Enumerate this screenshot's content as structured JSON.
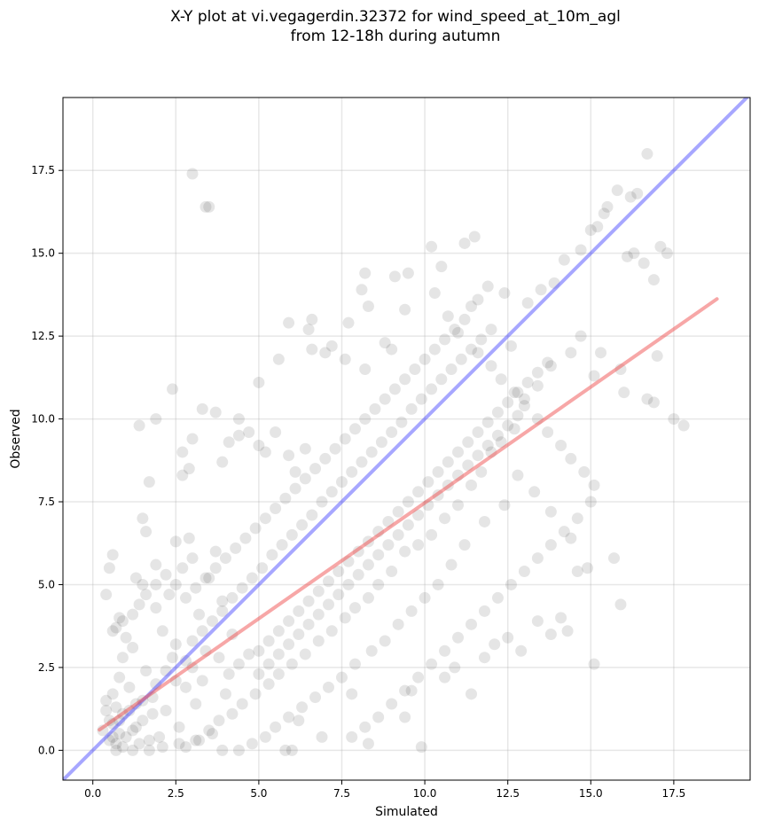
{
  "chart_data": {
    "type": "scatter",
    "title_lines": [
      "X-Y plot at vi.vegagerdin.32372 for wind_speed_at_10m_agl",
      "from 12-18h during autumn"
    ],
    "xlabel": "Simulated",
    "ylabel": "Observed",
    "xlim": [
      -0.9,
      19.8
    ],
    "ylim": [
      -0.9,
      19.7
    ],
    "xticks": [
      0.0,
      2.5,
      5.0,
      7.5,
      10.0,
      12.5,
      15.0,
      17.5
    ],
    "xtick_labels": [
      "0.0",
      "2.5",
      "5.0",
      "7.5",
      "10.0",
      "12.5",
      "15.0",
      "17.5"
    ],
    "yticks": [
      0.0,
      2.5,
      5.0,
      7.5,
      10.0,
      12.5,
      15.0,
      17.5
    ],
    "ytick_labels": [
      "0.0",
      "2.5",
      "5.0",
      "7.5",
      "10.0",
      "12.5",
      "15.0",
      "17.5"
    ],
    "grid": true,
    "point_color": "#000000",
    "point_alpha": 0.1,
    "reference_line": {
      "color": "#3b3bff",
      "x": [
        -0.9,
        19.8
      ],
      "y": [
        -0.9,
        19.8
      ]
    },
    "fit_line": {
      "color": "#f05050",
      "x": [
        0.2,
        18.8
      ],
      "y": [
        0.62,
        13.62
      ]
    },
    "points": [
      [
        0.5,
        0.3
      ],
      [
        0.7,
        0.2
      ],
      [
        0.8,
        0.5
      ],
      [
        0.6,
        0.8
      ],
      [
        1.0,
        0.4
      ],
      [
        1.2,
        0.6
      ],
      [
        0.9,
        1.1
      ],
      [
        1.4,
        0.2
      ],
      [
        0.4,
        1.5
      ],
      [
        0.6,
        1.7
      ],
      [
        1.1,
        1.9
      ],
      [
        0.8,
        2.2
      ],
      [
        1.5,
        0.9
      ],
      [
        1.7,
        0.3
      ],
      [
        1.3,
        1.4
      ],
      [
        0.3,
        0.6
      ],
      [
        0.7,
        1.3
      ],
      [
        1.8,
        1.6
      ],
      [
        2.0,
        0.4
      ],
      [
        1.6,
        2.4
      ],
      [
        0.9,
        2.8
      ],
      [
        1.2,
        3.1
      ],
      [
        0.6,
        3.6
      ],
      [
        0.8,
        4.0
      ],
      [
        1.0,
        3.4
      ],
      [
        0.5,
        5.5
      ],
      [
        0.6,
        5.9
      ],
      [
        0.4,
        4.7
      ],
      [
        1.5,
        5.0
      ],
      [
        1.3,
        5.2
      ],
      [
        1.9,
        4.3
      ],
      [
        2.1,
        3.6
      ],
      [
        2.4,
        2.8
      ],
      [
        2.2,
        1.2
      ],
      [
        2.6,
        0.7
      ],
      [
        2.8,
        1.9
      ],
      [
        3.0,
        2.5
      ],
      [
        2.5,
        3.2
      ],
      [
        2.3,
        4.7
      ],
      [
        2.7,
        5.5
      ],
      [
        3.2,
        4.1
      ],
      [
        3.4,
        3.0
      ],
      [
        3.1,
        1.4
      ],
      [
        3.6,
        0.5
      ],
      [
        3.3,
        2.1
      ],
      [
        3.8,
        2.8
      ],
      [
        4.0,
        1.7
      ],
      [
        4.2,
        3.5
      ],
      [
        3.9,
        4.5
      ],
      [
        3.5,
        5.2
      ],
      [
        3.7,
        6.0
      ],
      [
        3.0,
        5.8
      ],
      [
        2.9,
        6.4
      ],
      [
        2.5,
        6.3
      ],
      [
        1.9,
        5.6
      ],
      [
        1.6,
        6.6
      ],
      [
        1.5,
        7.0
      ],
      [
        1.7,
        8.1
      ],
      [
        1.4,
        9.8
      ],
      [
        1.9,
        10.0
      ],
      [
        2.4,
        10.9
      ],
      [
        2.7,
        8.3
      ],
      [
        2.9,
        8.5
      ],
      [
        2.7,
        9.0
      ],
      [
        3.0,
        9.4
      ],
      [
        3.3,
        10.3
      ],
      [
        3.7,
        10.2
      ],
      [
        3.9,
        8.7
      ],
      [
        4.1,
        9.3
      ],
      [
        4.4,
        9.5
      ],
      [
        4.4,
        10.0
      ],
      [
        4.7,
        9.6
      ],
      [
        5.0,
        9.2
      ],
      [
        5.2,
        9.0
      ],
      [
        5.5,
        9.6
      ],
      [
        5.6,
        11.8
      ],
      [
        5.0,
        11.1
      ],
      [
        5.9,
        8.9
      ],
      [
        6.1,
        8.4
      ],
      [
        6.4,
        9.1
      ],
      [
        6.6,
        12.1
      ],
      [
        6.6,
        13.0
      ],
      [
        6.5,
        12.7
      ],
      [
        5.9,
        12.9
      ],
      [
        7.0,
        12.0
      ],
      [
        7.2,
        12.2
      ],
      [
        7.6,
        11.8
      ],
      [
        7.7,
        12.9
      ],
      [
        8.2,
        14.4
      ],
      [
        8.1,
        13.9
      ],
      [
        8.3,
        13.4
      ],
      [
        8.2,
        11.5
      ],
      [
        8.8,
        12.3
      ],
      [
        9.0,
        12.1
      ],
      [
        9.1,
        14.3
      ],
      [
        9.5,
        14.4
      ],
      [
        9.4,
        13.3
      ],
      [
        10.2,
        15.2
      ],
      [
        10.5,
        14.6
      ],
      [
        10.3,
        13.8
      ],
      [
        10.7,
        13.1
      ],
      [
        11.0,
        12.6
      ],
      [
        11.4,
        13.4
      ],
      [
        11.6,
        13.6
      ],
      [
        11.9,
        14.0
      ],
      [
        11.2,
        15.3
      ],
      [
        11.5,
        15.5
      ],
      [
        12.4,
        13.8
      ],
      [
        12.6,
        12.2
      ],
      [
        13.1,
        13.5
      ],
      [
        13.5,
        13.9
      ],
      [
        13.9,
        14.1
      ],
      [
        14.2,
        14.8
      ],
      [
        14.7,
        15.1
      ],
      [
        15.0,
        15.7
      ],
      [
        15.2,
        15.8
      ],
      [
        15.4,
        16.2
      ],
      [
        15.5,
        16.4
      ],
      [
        15.8,
        16.9
      ],
      [
        16.2,
        16.7
      ],
      [
        16.4,
        16.8
      ],
      [
        16.7,
        18.0
      ],
      [
        16.3,
        15.0
      ],
      [
        16.1,
        14.9
      ],
      [
        16.6,
        14.7
      ],
      [
        17.1,
        15.2
      ],
      [
        17.3,
        15.0
      ],
      [
        16.9,
        14.2
      ],
      [
        17.0,
        11.9
      ],
      [
        17.5,
        10.0
      ],
      [
        17.8,
        9.8
      ],
      [
        16.7,
        10.6
      ],
      [
        16.9,
        10.5
      ],
      [
        16.0,
        10.8
      ],
      [
        15.9,
        11.5
      ],
      [
        15.3,
        12.0
      ],
      [
        15.1,
        11.3
      ],
      [
        14.7,
        12.5
      ],
      [
        14.4,
        12.0
      ],
      [
        13.8,
        11.6
      ],
      [
        13.4,
        11.0
      ],
      [
        13.0,
        10.6
      ],
      [
        12.7,
        9.7
      ],
      [
        12.3,
        9.3
      ],
      [
        12.0,
        9.0
      ],
      [
        11.7,
        8.4
      ],
      [
        11.4,
        8.0
      ],
      [
        11.0,
        7.4
      ],
      [
        10.6,
        7.0
      ],
      [
        10.2,
        6.5
      ],
      [
        9.8,
        6.2
      ],
      [
        9.4,
        6.0
      ],
      [
        9.0,
        5.4
      ],
      [
        8.6,
        5.0
      ],
      [
        8.3,
        4.6
      ],
      [
        7.9,
        4.3
      ],
      [
        7.6,
        4.0
      ],
      [
        7.2,
        3.6
      ],
      [
        6.8,
        3.3
      ],
      [
        6.4,
        2.9
      ],
      [
        6.0,
        2.6
      ],
      [
        5.6,
        2.3
      ],
      [
        5.3,
        2.0
      ],
      [
        4.9,
        1.7
      ],
      [
        4.5,
        1.4
      ],
      [
        4.2,
        1.1
      ],
      [
        3.8,
        0.9
      ],
      [
        3.5,
        0.6
      ],
      [
        3.1,
        0.3
      ],
      [
        2.8,
        0.1
      ],
      [
        6.2,
        0.9
      ],
      [
        6.9,
        0.4
      ],
      [
        7.8,
        1.7
      ],
      [
        8.3,
        0.2
      ],
      [
        9.4,
        1.0
      ],
      [
        9.9,
        0.1
      ],
      [
        9.6,
        1.8
      ],
      [
        10.6,
        2.2
      ],
      [
        10.9,
        2.5
      ],
      [
        11.4,
        1.7
      ],
      [
        11.8,
        2.8
      ],
      [
        12.1,
        3.2
      ],
      [
        12.5,
        3.4
      ],
      [
        12.9,
        3.0
      ],
      [
        13.4,
        3.9
      ],
      [
        13.8,
        3.5
      ],
      [
        14.1,
        4.0
      ],
      [
        14.3,
        3.6
      ],
      [
        15.1,
        2.6
      ],
      [
        15.9,
        4.4
      ],
      [
        15.7,
        5.8
      ],
      [
        14.9,
        5.5
      ],
      [
        14.6,
        5.4
      ],
      [
        14.4,
        6.4
      ],
      [
        13.8,
        7.2
      ],
      [
        13.3,
        7.8
      ],
      [
        12.8,
        8.3
      ],
      [
        12.4,
        7.4
      ],
      [
        11.8,
        6.9
      ],
      [
        11.2,
        6.2
      ],
      [
        10.8,
        5.6
      ],
      [
        10.4,
        5.0
      ],
      [
        10.0,
        4.6
      ],
      [
        9.6,
        4.2
      ],
      [
        9.2,
        3.8
      ],
      [
        8.8,
        3.3
      ],
      [
        8.4,
        3.0
      ],
      [
        7.9,
        2.6
      ],
      [
        7.5,
        2.2
      ],
      [
        7.1,
        1.9
      ],
      [
        6.7,
        1.6
      ],
      [
        6.3,
        1.3
      ],
      [
        5.9,
        1.0
      ],
      [
        5.5,
        0.7
      ],
      [
        5.2,
        0.4
      ],
      [
        4.8,
        0.2
      ],
      [
        4.4,
        0.0
      ],
      [
        5.8,
        0.0
      ],
      [
        6.0,
        0.0
      ],
      [
        3.9,
        0.0
      ],
      [
        3.2,
        0.3
      ],
      [
        2.6,
        0.2
      ],
      [
        2.1,
        0.1
      ],
      [
        1.7,
        0.0
      ],
      [
        1.2,
        0.0
      ],
      [
        0.9,
        0.1
      ],
      [
        0.7,
        0.0
      ],
      [
        0.6,
        0.4
      ],
      [
        0.5,
        0.9
      ],
      [
        0.4,
        1.2
      ],
      [
        0.8,
        0.9
      ],
      [
        1.1,
        1.2
      ],
      [
        1.3,
        0.7
      ],
      [
        1.5,
        1.5
      ],
      [
        1.8,
        1.1
      ],
      [
        1.9,
        2.0
      ],
      [
        2.2,
        2.4
      ],
      [
        2.5,
        2.1
      ],
      [
        2.8,
        2.7
      ],
      [
        3.0,
        3.3
      ],
      [
        3.3,
        3.6
      ],
      [
        3.6,
        3.9
      ],
      [
        3.9,
        4.2
      ],
      [
        4.2,
        4.6
      ],
      [
        4.5,
        4.9
      ],
      [
        4.8,
        5.2
      ],
      [
        5.1,
        5.5
      ],
      [
        5.4,
        5.9
      ],
      [
        5.7,
        6.2
      ],
      [
        6.0,
        6.5
      ],
      [
        6.3,
        6.8
      ],
      [
        6.6,
        7.1
      ],
      [
        6.9,
        7.5
      ],
      [
        7.2,
        7.8
      ],
      [
        7.5,
        8.1
      ],
      [
        7.8,
        8.4
      ],
      [
        8.1,
        8.7
      ],
      [
        8.4,
        9.0
      ],
      [
        8.7,
        9.3
      ],
      [
        9.0,
        9.6
      ],
      [
        9.3,
        9.9
      ],
      [
        9.6,
        10.3
      ],
      [
        9.9,
        10.6
      ],
      [
        10.2,
        10.9
      ],
      [
        10.5,
        11.2
      ],
      [
        10.8,
        11.5
      ],
      [
        11.1,
        11.8
      ],
      [
        11.4,
        12.1
      ],
      [
        11.7,
        12.4
      ],
      [
        12.0,
        12.7
      ],
      [
        3.0,
        17.4
      ],
      [
        3.4,
        16.4
      ],
      [
        3.5,
        16.4
      ],
      [
        0.7,
        3.7
      ],
      [
        0.9,
        3.9
      ],
      [
        1.2,
        4.1
      ],
      [
        1.4,
        4.4
      ],
      [
        1.6,
        4.7
      ],
      [
        1.9,
        5.0
      ],
      [
        2.2,
        5.3
      ],
      [
        2.5,
        5.0
      ],
      [
        2.8,
        4.6
      ],
      [
        3.1,
        4.9
      ],
      [
        3.4,
        5.2
      ],
      [
        3.7,
        5.5
      ],
      [
        4.0,
        5.8
      ],
      [
        4.3,
        6.1
      ],
      [
        4.6,
        6.4
      ],
      [
        4.9,
        6.7
      ],
      [
        5.2,
        7.0
      ],
      [
        5.5,
        7.3
      ],
      [
        5.8,
        7.6
      ],
      [
        6.1,
        7.9
      ],
      [
        6.4,
        8.2
      ],
      [
        6.7,
        8.5
      ],
      [
        7.0,
        8.8
      ],
      [
        7.3,
        9.1
      ],
      [
        7.6,
        9.4
      ],
      [
        7.9,
        9.7
      ],
      [
        8.2,
        10.0
      ],
      [
        8.5,
        10.3
      ],
      [
        8.8,
        10.6
      ],
      [
        9.1,
        10.9
      ],
      [
        9.4,
        11.2
      ],
      [
        9.7,
        11.5
      ],
      [
        10.0,
        11.8
      ],
      [
        10.3,
        12.1
      ],
      [
        10.6,
        12.4
      ],
      [
        10.9,
        12.7
      ],
      [
        11.2,
        13.0
      ],
      [
        11.6,
        12.0
      ],
      [
        12.0,
        11.6
      ],
      [
        12.3,
        11.2
      ],
      [
        12.7,
        10.8
      ],
      [
        13.0,
        10.4
      ],
      [
        13.4,
        10.0
      ],
      [
        13.7,
        9.6
      ],
      [
        14.1,
        9.2
      ],
      [
        14.4,
        8.8
      ],
      [
        14.8,
        8.4
      ],
      [
        15.1,
        8.0
      ],
      [
        15.0,
        7.5
      ],
      [
        14.6,
        7.0
      ],
      [
        14.2,
        6.6
      ],
      [
        13.8,
        6.2
      ],
      [
        13.4,
        5.8
      ],
      [
        13.0,
        5.4
      ],
      [
        12.6,
        5.0
      ],
      [
        12.2,
        4.6
      ],
      [
        11.8,
        4.2
      ],
      [
        11.4,
        3.8
      ],
      [
        11.0,
        3.4
      ],
      [
        10.6,
        3.0
      ],
      [
        10.2,
        2.6
      ],
      [
        9.8,
        2.2
      ],
      [
        9.4,
        1.8
      ],
      [
        9.0,
        1.4
      ],
      [
        8.6,
        1.0
      ],
      [
        8.2,
        0.7
      ],
      [
        7.8,
        0.4
      ],
      [
        5.0,
        3.0
      ],
      [
        5.3,
        3.3
      ],
      [
        5.6,
        3.6
      ],
      [
        5.9,
        3.9
      ],
      [
        6.2,
        4.2
      ],
      [
        6.5,
        4.5
      ],
      [
        6.8,
        4.8
      ],
      [
        7.1,
        5.1
      ],
      [
        7.4,
        5.4
      ],
      [
        7.7,
        5.7
      ],
      [
        8.0,
        6.0
      ],
      [
        8.3,
        6.3
      ],
      [
        8.6,
        6.6
      ],
      [
        8.9,
        6.9
      ],
      [
        9.2,
        7.2
      ],
      [
        9.5,
        7.5
      ],
      [
        9.8,
        7.8
      ],
      [
        10.1,
        8.1
      ],
      [
        10.4,
        8.4
      ],
      [
        10.7,
        8.7
      ],
      [
        11.0,
        9.0
      ],
      [
        11.3,
        9.3
      ],
      [
        11.6,
        9.6
      ],
      [
        11.9,
        9.9
      ],
      [
        12.2,
        10.2
      ],
      [
        12.5,
        10.5
      ],
      [
        12.8,
        10.8
      ],
      [
        13.1,
        11.1
      ],
      [
        13.4,
        11.4
      ],
      [
        13.7,
        11.7
      ],
      [
        4.1,
        2.3
      ],
      [
        4.4,
        2.6
      ],
      [
        4.7,
        2.9
      ],
      [
        5.0,
        2.3
      ],
      [
        5.3,
        2.6
      ],
      [
        5.6,
        2.9
      ],
      [
        5.9,
        3.2
      ],
      [
        6.2,
        3.5
      ],
      [
        6.5,
        3.8
      ],
      [
        6.8,
        4.1
      ],
      [
        7.1,
        4.4
      ],
      [
        7.4,
        4.7
      ],
      [
        7.7,
        5.0
      ],
      [
        8.0,
        5.3
      ],
      [
        8.3,
        5.6
      ],
      [
        8.6,
        5.9
      ],
      [
        8.9,
        6.2
      ],
      [
        9.2,
        6.5
      ],
      [
        9.5,
        6.8
      ],
      [
        9.8,
        7.1
      ],
      [
        10.1,
        7.4
      ],
      [
        10.4,
        7.7
      ],
      [
        10.7,
        8.0
      ],
      [
        11.0,
        8.3
      ],
      [
        11.3,
        8.6
      ],
      [
        11.6,
        8.9
      ],
      [
        11.9,
        9.2
      ],
      [
        12.2,
        9.5
      ],
      [
        12.5,
        9.8
      ],
      [
        12.8,
        10.1
      ]
    ]
  }
}
